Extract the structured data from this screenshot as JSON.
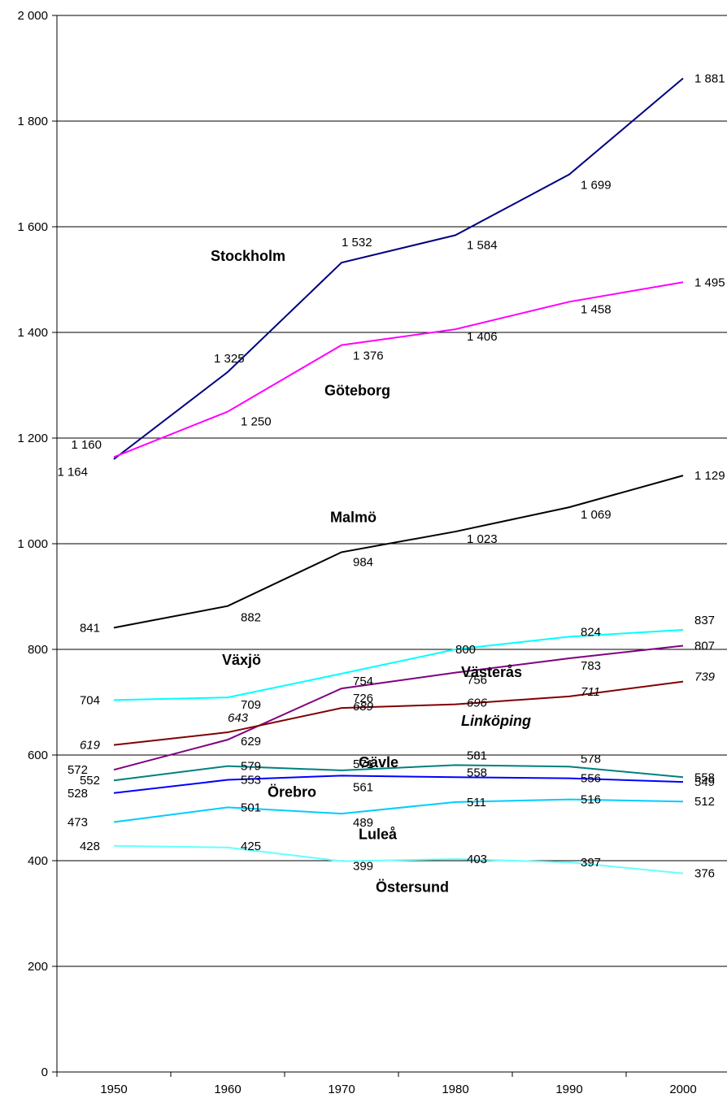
{
  "chart_data": {
    "type": "line",
    "x": [
      1950,
      1960,
      1970,
      1980,
      1990,
      2000
    ],
    "xlabels": [
      "1950",
      "1960",
      "1970",
      "1980",
      "1990",
      "2000"
    ],
    "ylim": [
      0,
      2000
    ],
    "yticks": [
      0,
      200,
      400,
      600,
      800,
      1000,
      1200,
      1400,
      1600,
      1800,
      2000
    ],
    "ytick_labels": [
      "0",
      "200",
      "400",
      "600",
      "800",
      "1 000",
      "1 200",
      "1 400",
      "1 600",
      "1 800",
      "2 000"
    ],
    "grid": true,
    "series": [
      {
        "name": "Stockholm",
        "color": "#000080",
        "values": [
          1160,
          1325,
          1532,
          1584,
          1699,
          1881
        ],
        "labels": [
          "1 160",
          "1 325",
          "1 532",
          "1 584",
          "1 699",
          "1 881"
        ],
        "italic": false
      },
      {
        "name": "Göteborg",
        "color": "#ff00ff",
        "values": [
          1164,
          1250,
          1376,
          1406,
          1458,
          1495
        ],
        "labels": [
          "1 164",
          "1 250",
          "1 376",
          "1 406",
          "1 458",
          "1 495"
        ],
        "italic": false
      },
      {
        "name": "Malmö",
        "color": "#000000",
        "values": [
          841,
          882,
          984,
          1023,
          1069,
          1129
        ],
        "labels": [
          "841",
          "882",
          "984",
          "1 023",
          "1 069",
          "1 129"
        ],
        "italic": false
      },
      {
        "name": "Växjö",
        "color": "#00ffff",
        "values": [
          704,
          709,
          754,
          800,
          824,
          837
        ],
        "labels": [
          "704",
          "709",
          "754",
          "800",
          "824",
          "837"
        ],
        "italic": false
      },
      {
        "name": "Västerås",
        "color": "#800080",
        "values": [
          572,
          629,
          726,
          756,
          783,
          807
        ],
        "labels": [
          "572",
          "629",
          "726",
          "756",
          "783",
          "807"
        ],
        "italic": false
      },
      {
        "name": "Linköping",
        "color": "#800000",
        "values": [
          619,
          643,
          689,
          696,
          711,
          739
        ],
        "labels": [
          "619",
          "643",
          "689",
          "696",
          "711",
          "739"
        ],
        "italic": true
      },
      {
        "name": "Gävle",
        "color": "#008080",
        "values": [
          552,
          579,
          571,
          581,
          578,
          558
        ],
        "labels": [
          "552",
          "579",
          "571",
          "581",
          "578",
          "558"
        ],
        "italic": false
      },
      {
        "name": "Örebro",
        "color": "#0000ff",
        "values": [
          528,
          553,
          561,
          558,
          556,
          549
        ],
        "labels": [
          "528",
          "553",
          "561",
          "558",
          "556",
          "549"
        ],
        "italic": false
      },
      {
        "name": "Luleå",
        "color": "#00ccff",
        "values": [
          473,
          501,
          489,
          511,
          516,
          512
        ],
        "labels": [
          "473",
          "501",
          "489",
          "511",
          "516",
          "512"
        ],
        "italic": false
      },
      {
        "name": "Östersund",
        "color": "#66ffff",
        "values": [
          428,
          425,
          399,
          403,
          397,
          376
        ],
        "labels": [
          "428",
          "425",
          "399",
          "403",
          "397",
          "376"
        ],
        "italic": false
      }
    ]
  }
}
